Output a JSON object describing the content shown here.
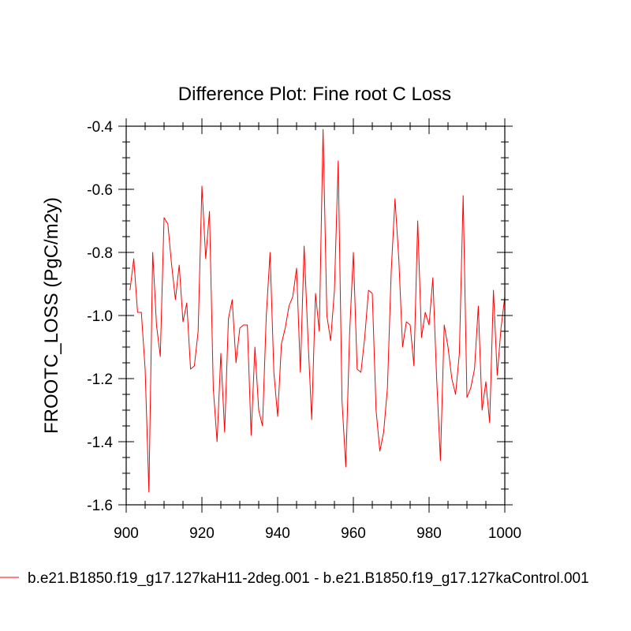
{
  "chart_data": {
    "type": "line",
    "title": "Difference Plot: Fine root C Loss",
    "xlabel": "",
    "ylabel": "FROOTC_LOSS  (PgC/m2y)",
    "xlim": [
      900,
      1000
    ],
    "ylim": [
      -1.6,
      -0.4
    ],
    "xticks": [
      900,
      920,
      940,
      960,
      980,
      1000
    ],
    "xtick_labels": [
      "900",
      "920",
      "940",
      "960",
      "980",
      "1000"
    ],
    "yticks": [
      -1.6,
      -1.4,
      -1.2,
      -1.0,
      -0.8,
      -0.6,
      -0.4
    ],
    "ytick_labels": [
      "-1.6",
      "-1.4",
      "-1.2",
      "-1.0",
      "-0.8",
      "-0.6",
      "-0.4"
    ],
    "grid": false,
    "legend_position": "bottom",
    "series": [
      {
        "name": "b.e21.B1850.f19_g17.127kaH11-2deg.001 - b.e21.B1850.f19_g17.127kaControl.001",
        "color": "#ff0000",
        "x": [
          901,
          902,
          903,
          904,
          905,
          906,
          907,
          908,
          909,
          910,
          911,
          912,
          913,
          914,
          915,
          916,
          917,
          918,
          919,
          920,
          921,
          922,
          923,
          924,
          925,
          926,
          927,
          928,
          929,
          930,
          931,
          932,
          933,
          934,
          935,
          936,
          937,
          938,
          939,
          940,
          941,
          942,
          943,
          944,
          945,
          946,
          947,
          948,
          949,
          950,
          951,
          952,
          953,
          954,
          955,
          956,
          957,
          958,
          959,
          960,
          961,
          962,
          963,
          964,
          965,
          966,
          967,
          968,
          969,
          970,
          971,
          972,
          973,
          974,
          975,
          976,
          977,
          978,
          979,
          980,
          981,
          982,
          983,
          984,
          985,
          986,
          987,
          988,
          989,
          990,
          991,
          992,
          993,
          994,
          995,
          996,
          997,
          998,
          999,
          1000
        ],
        "y": [
          -0.92,
          -0.82,
          -0.99,
          -0.99,
          -1.17,
          -1.56,
          -0.8,
          -1.03,
          -1.13,
          -0.69,
          -0.71,
          -0.84,
          -0.95,
          -0.84,
          -1.02,
          -0.96,
          -1.17,
          -1.16,
          -1.05,
          -0.59,
          -0.82,
          -0.67,
          -1.23,
          -1.4,
          -1.12,
          -1.37,
          -1.01,
          -0.95,
          -1.15,
          -1.04,
          -1.03,
          -1.03,
          -1.38,
          -1.1,
          -1.3,
          -1.35,
          -1.0,
          -0.8,
          -1.18,
          -1.32,
          -1.09,
          -1.04,
          -0.97,
          -0.94,
          -0.85,
          -1.18,
          -0.78,
          -1.07,
          -1.33,
          -0.93,
          -1.05,
          -0.41,
          -1.0,
          -1.08,
          -0.92,
          -0.51,
          -1.27,
          -1.48,
          -1.06,
          -0.8,
          -1.17,
          -1.18,
          -1.07,
          -0.92,
          -0.93,
          -1.3,
          -1.43,
          -1.37,
          -1.23,
          -0.86,
          -0.63,
          -0.82,
          -1.1,
          -1.02,
          -1.03,
          -1.16,
          -0.7,
          -1.07,
          -0.99,
          -1.03,
          -0.88,
          -1.2,
          -1.46,
          -1.03,
          -1.1,
          -1.2,
          -1.25,
          -1.12,
          -0.62,
          -1.26,
          -1.23,
          -1.17,
          -0.97,
          -1.3,
          -1.21,
          -1.34,
          -0.92,
          -1.19,
          -1.04,
          -0.94
        ]
      }
    ]
  }
}
